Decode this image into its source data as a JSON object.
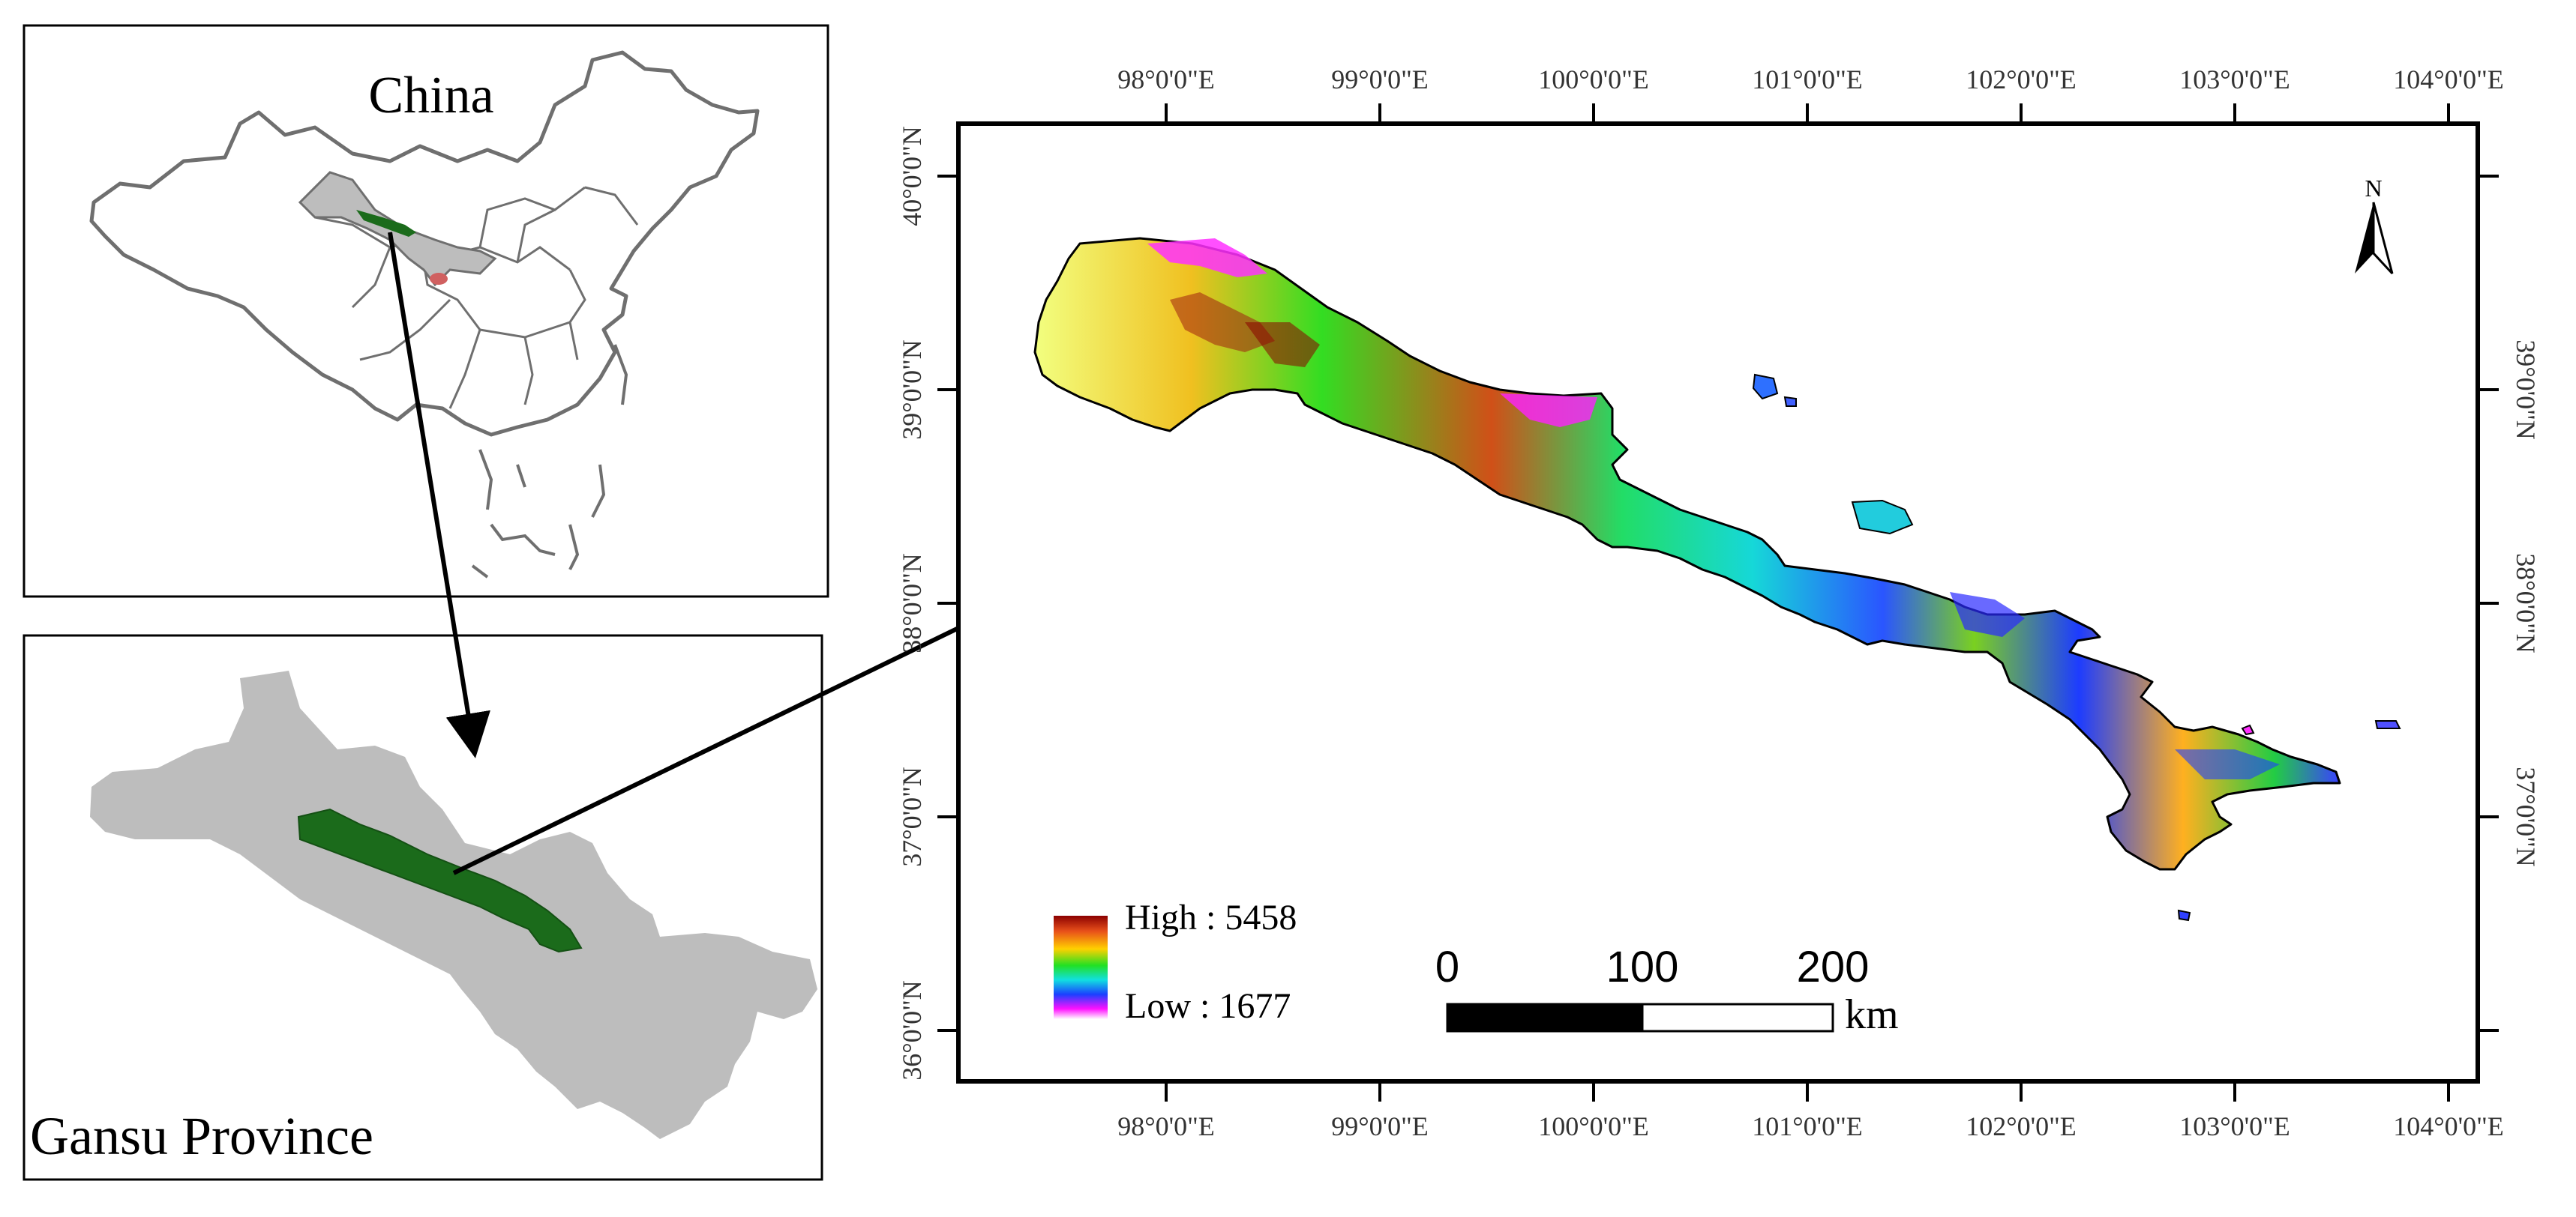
{
  "inset_china": {
    "title": "China"
  },
  "inset_gansu": {
    "title": "Gansu Province"
  },
  "main_map": {
    "x_ticks": [
      "98°0'0\"E",
      "99°0'0\"E",
      "100°0'0\"E",
      "101°0'0\"E",
      "102°0'0\"E",
      "103°0'0\"E",
      "104°0'0\"E"
    ],
    "y_ticks": [
      "40°0'0\"N",
      "39°0'0\"N",
      "38°0'0\"N",
      "37°0'0\"N",
      "36°0'0\"N"
    ],
    "north_arrow": {
      "label": "N"
    },
    "legend": {
      "high_label": "High : 5458",
      "low_label": "Low : 1677"
    },
    "scale_bar": {
      "labels": [
        "0",
        "100",
        "200"
      ],
      "unit": "km"
    }
  },
  "colors": {
    "frame": "#000000",
    "gansu_fill": "#bdbdbd",
    "study_area": "#1b6b1b",
    "china_border": "#6f6f6f",
    "ramp": [
      "#8b0000",
      "#e8501a",
      "#ffd000",
      "#22e022",
      "#11e0e0",
      "#1a40ff",
      "#ff10ff",
      "#ffffff"
    ]
  }
}
